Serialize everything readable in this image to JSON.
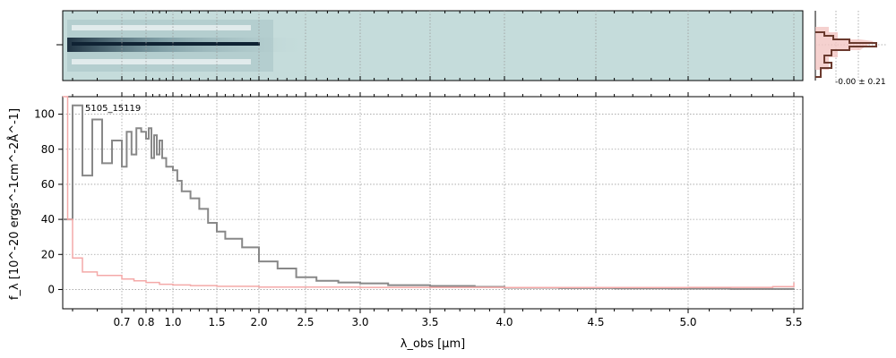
{
  "chart_data": [
    {
      "type": "heatmap",
      "panel": "2d-spectrum",
      "colormap": [
        "#c5dcdb",
        "#7f9ea6",
        "#0f2233"
      ],
      "description_of_trace": "strong central trace at left fading toward right"
    },
    {
      "type": "line",
      "panel": "profile",
      "annotation": "-0.00 ± 0.21",
      "colors": {
        "profile": "#6b3a2e",
        "fill": "#f3c6c3"
      }
    },
    {
      "type": "line",
      "panel": "1d-spectrum",
      "label": "5105_15119",
      "xlabel": "λ_obs [μm]",
      "ylabel": "f_λ [10^-20 ergs^-1cm^-2Å^-1]",
      "xticks": [
        "0.7",
        "0.8",
        "1.0",
        "1.5",
        "2.0",
        "2.5",
        "3.0",
        "3.5",
        "4.0",
        "4.5",
        "5.0",
        "5.5"
      ],
      "yticks": [
        "0",
        "20",
        "40",
        "60",
        "80",
        "100"
      ],
      "ylim": [
        -11,
        110
      ],
      "xlim": [
        0.58,
        5.53
      ],
      "grid": true,
      "series": [
        {
          "color": "#888888",
          "x": [
            0.58,
            0.6,
            0.62,
            0.64,
            0.66,
            0.68,
            0.7,
            0.72,
            0.74,
            0.76,
            0.78,
            0.8,
            0.82,
            0.84,
            0.86,
            0.88,
            0.9,
            0.92,
            0.95,
            1.0,
            1.05,
            1.1,
            1.2,
            1.3,
            1.4,
            1.5,
            1.6,
            1.8,
            2.0,
            2.2,
            2.4,
            2.6,
            2.8,
            3.0,
            3.2,
            3.5,
            3.8,
            4.0,
            4.3,
            4.6,
            4.9,
            5.2,
            5.5
          ],
          "y": [
            40,
            105,
            65,
            97,
            72,
            85,
            70,
            90,
            77,
            92,
            90,
            86,
            92,
            75,
            88,
            77,
            85,
            75,
            70,
            68,
            62,
            56,
            52,
            46,
            38,
            33,
            29,
            24,
            16,
            12,
            7,
            5,
            4,
            3.5,
            2.5,
            2,
            1.5,
            1,
            0.8,
            0.6,
            0.5,
            0.3,
            0.5
          ]
        },
        {
          "color": "#f4a9a8",
          "x": [
            0.58,
            0.59,
            0.6,
            0.62,
            0.65,
            0.7,
            0.75,
            0.8,
            0.9,
            1.0,
            1.2,
            1.5,
            2.0,
            3.0,
            4.0,
            5.0,
            5.4,
            5.5
          ],
          "y": [
            110,
            40,
            18,
            10,
            8,
            6,
            5,
            4,
            3,
            2.6,
            2.2,
            1.8,
            1.4,
            1.2,
            1.1,
            1.2,
            1.6,
            4
          ]
        }
      ]
    }
  ]
}
